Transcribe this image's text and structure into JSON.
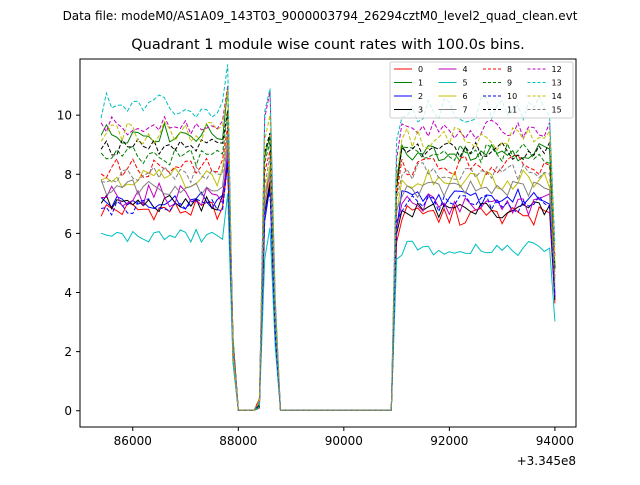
{
  "chart_data": {
    "type": "line",
    "suptitle": "Data file: modeM0/AS1A09_143T03_9000003794_26294cztM0_level2_quad_clean.evt",
    "title": "Quadrant 1 module wise count rates with 100.0s bins.",
    "xlabel": "",
    "ylabel": "",
    "x_offset_label": "+3.345e8",
    "xlim": [
      85000,
      94400
    ],
    "ylim": [
      -0.55,
      11.9
    ],
    "x_ticks": [
      86000,
      88000,
      90000,
      92000,
      94000
    ],
    "x_tick_labels": [
      "86000",
      "88000",
      "90000",
      "92000",
      "94000"
    ],
    "y_ticks": [
      0,
      2,
      4,
      6,
      8,
      10
    ],
    "y_tick_labels": [
      "0",
      "2",
      "4",
      "6",
      "8",
      "10"
    ],
    "grid": false,
    "legend_position": "top-right",
    "bin_start": 85400,
    "bin_step": 100,
    "bin_count": 87,
    "series": [
      {
        "name": "0",
        "color": "#ff0000",
        "dash": "solid",
        "base1": 6.8,
        "base2": 6.6,
        "amp": 0.35,
        "spike": 7.8
      },
      {
        "name": "1",
        "color": "#008000",
        "dash": "solid",
        "base1": 9.4,
        "base2": 8.8,
        "amp": 0.35,
        "spike": 9.3
      },
      {
        "name": "2",
        "color": "#0000ff",
        "dash": "solid",
        "base1": 7.1,
        "base2": 7.2,
        "amp": 0.3,
        "spike": 7.6
      },
      {
        "name": "3",
        "color": "#000000",
        "dash": "solid",
        "base1": 7.0,
        "base2": 6.8,
        "amp": 0.3,
        "spike": 7.7
      },
      {
        "name": "4",
        "color": "#bf00bf",
        "dash": "solid",
        "base1": 7.3,
        "base2": 7.0,
        "amp": 0.4,
        "spike": 8.0
      },
      {
        "name": "5",
        "color": "#00bfbf",
        "dash": "solid",
        "base1": 5.9,
        "base2": 5.5,
        "amp": 0.25,
        "spike": 6.2
      },
      {
        "name": "6",
        "color": "#bfbf00",
        "dash": "solid",
        "base1": 7.9,
        "base2": 7.8,
        "amp": 0.35,
        "spike": 8.3
      },
      {
        "name": "7",
        "color": "#808080",
        "dash": "solid",
        "base1": 7.6,
        "base2": 7.5,
        "amp": 0.3,
        "spike": 8.1
      },
      {
        "name": "8",
        "color": "#ff0000",
        "dash": "dashed",
        "base1": 8.2,
        "base2": 8.3,
        "amp": 0.35,
        "spike": 8.8
      },
      {
        "name": "9",
        "color": "#008000",
        "dash": "dashed",
        "base1": 8.6,
        "base2": 8.7,
        "amp": 0.35,
        "spike": 9.1
      },
      {
        "name": "10",
        "color": "#0000ff",
        "dash": "dashed",
        "base1": 6.9,
        "base2": 7.0,
        "amp": 0.3,
        "spike": 7.4
      },
      {
        "name": "11",
        "color": "#000000",
        "dash": "dashed",
        "base1": 8.9,
        "base2": 8.8,
        "amp": 0.3,
        "spike": 9.4
      },
      {
        "name": "12",
        "color": "#bf00bf",
        "dash": "dashed",
        "base1": 9.6,
        "base2": 9.5,
        "amp": 0.35,
        "spike": 10.8
      },
      {
        "name": "13",
        "color": "#00bfbf",
        "dash": "dashed",
        "base1": 10.3,
        "base2": 10.2,
        "amp": 0.45,
        "spike": 10.9
      },
      {
        "name": "14",
        "color": "#bfbf00",
        "dash": "dashed",
        "base1": 9.4,
        "base2": 9.2,
        "amp": 0.4,
        "spike": 10.0
      },
      {
        "name": "15",
        "color": "#808080",
        "dash": "dashed",
        "base1": 8.0,
        "base2": 8.1,
        "amp": 0.3,
        "spike": 8.6
      }
    ]
  }
}
